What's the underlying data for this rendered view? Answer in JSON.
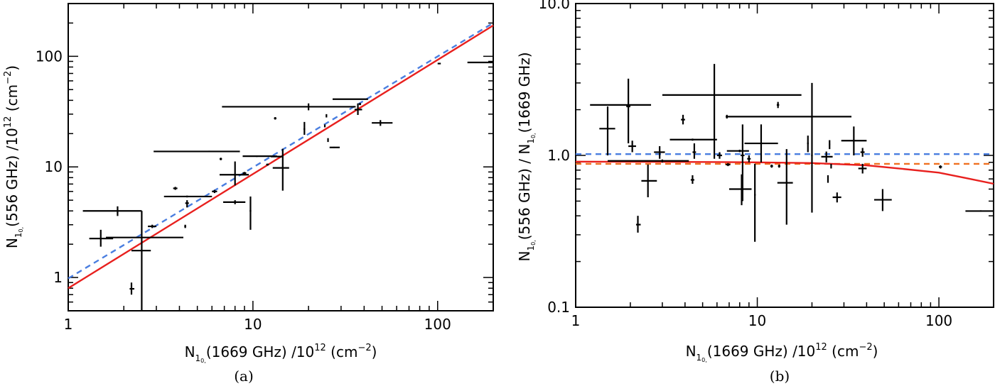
{
  "chart_data": [
    {
      "type": "scatter",
      "panel": "a",
      "caption": "(a)",
      "xscale": "log",
      "yscale": "log",
      "xlim": [
        1,
        200
      ],
      "ylim": [
        0.5,
        300
      ],
      "xticks": [
        {
          "v": 1,
          "label": "1"
        },
        {
          "v": 10,
          "label": "10"
        },
        {
          "v": 100,
          "label": "100"
        }
      ],
      "yticks": [
        {
          "v": 1,
          "label": "1"
        },
        {
          "v": 10,
          "label": "10"
        },
        {
          "v": 100,
          "label": "100"
        }
      ],
      "xlabel": {
        "pre": "N",
        "sub": "1",
        "subsub": "0,",
        "post": "(1669 GHz)  /10",
        "sup": "12",
        "post2": " (cm",
        "sup2": "−2",
        "post3": ")"
      },
      "ylabel": {
        "pre": "N",
        "sub": "1",
        "subsub": "0,",
        "post": "(556 GHz)  /10",
        "sup": "12",
        "post2": " (cm",
        "sup2": "−2",
        "post3": ")"
      },
      "lines": [
        {
          "name": "fit-red",
          "color": "#e8201e",
          "dash": "",
          "points": [
            [
              1,
              0.8
            ],
            [
              200,
              190
            ]
          ]
        },
        {
          "name": "fit-blue-dashed",
          "color": "#4a7ee0",
          "dash": "8,6",
          "points": [
            [
              1,
              0.98
            ],
            [
              200,
              200
            ]
          ]
        }
      ],
      "points": [
        {
          "x": 1.5,
          "y": 2.25,
          "xerr": [
            1.3,
            1.75
          ],
          "yerr": [
            1.9,
            2.7
          ]
        },
        {
          "x": 1.85,
          "y": 4.0,
          "xerr": [
            1.2,
            2.5
          ],
          "yerr": [
            3.6,
            4.4
          ]
        },
        {
          "x": 2.2,
          "y": 0.79,
          "xerr": [
            2.15,
            2.28
          ],
          "yerr": [
            0.7,
            0.9
          ]
        },
        {
          "x": 2.5,
          "y": 2.3,
          "xerr": [
            1.6,
            4.2
          ],
          "yerr": [
            2.25,
            2.35
          ]
        },
        {
          "x": 2.5,
          "y": 1.75,
          "xerr": [
            2.2,
            2.8
          ],
          "yerr": [
            0.5,
            4.0
          ]
        },
        {
          "x": 2.85,
          "y": 2.9,
          "xerr": [
            2.7,
            3.0
          ],
          "yerr": [
            2.8,
            3.0
          ]
        },
        {
          "x": 3.8,
          "y": 6.4,
          "xerr": [
            3.7,
            3.9
          ],
          "yerr": [
            6.2,
            6.6
          ]
        },
        {
          "x": 4.3,
          "y": 2.9,
          "xerr": [
            4.25,
            4.35
          ],
          "yerr": [
            2.8,
            3.0
          ]
        },
        {
          "x": 4.4,
          "y": 4.7,
          "xerr": [
            4.3,
            4.5
          ],
          "yerr": [
            4.3,
            5.0
          ]
        },
        {
          "x": 4.4,
          "y": 5.4,
          "xerr": [
            3.3,
            6.0
          ],
          "yerr": [
            5.3,
            5.5
          ]
        },
        {
          "x": 5.8,
          "y": 13.8,
          "xerr": [
            2.9,
            8.5
          ],
          "yerr": [
            13.6,
            14.0
          ]
        },
        {
          "x": 6.2,
          "y": 6.0,
          "xerr": [
            6.0,
            6.4
          ],
          "yerr": [
            5.8,
            6.2
          ]
        },
        {
          "x": 6.7,
          "y": 11.8,
          "xerr": [
            6.6,
            6.8
          ],
          "yerr": [
            11.5,
            12.1
          ]
        },
        {
          "x": 8.0,
          "y": 4.8,
          "xerr": [
            6.9,
            9.1
          ],
          "yerr": [
            4.6,
            5.0
          ]
        },
        {
          "x": 8.0,
          "y": 8.5,
          "xerr": [
            6.6,
            9.5
          ],
          "yerr": [
            6.8,
            11.2
          ]
        },
        {
          "x": 9.0,
          "y": 8.8,
          "xerr": [
            8.8,
            9.2
          ],
          "yerr": [
            8.6,
            9.0
          ]
        },
        {
          "x": 9.7,
          "y": 4.0,
          "xerr": [
            9.6,
            9.8
          ],
          "yerr": [
            2.7,
            5.4
          ]
        },
        {
          "x": 10.5,
          "y": 12.5,
          "xerr": [
            8.8,
            13.5
          ],
          "yerr": [
            12.3,
            12.7
          ]
        },
        {
          "x": 12.0,
          "y": 10.5,
          "xerr": [
            11.8,
            12.2
          ],
          "yerr": [
            10.3,
            10.7
          ]
        },
        {
          "x": 13.2,
          "y": 27.5,
          "xerr": [
            13.0,
            13.4
          ],
          "yerr": [
            26.8,
            28.2
          ]
        },
        {
          "x": 14.5,
          "y": 9.8,
          "xerr": [
            12.8,
            15.7
          ],
          "yerr": [
            6.1,
            14.6
          ]
        },
        {
          "x": 14.0,
          "y": 12.4,
          "xerr": [
            12.5,
            14.5
          ],
          "yerr": [
            12.2,
            12.6
          ]
        },
        {
          "x": 19.0,
          "y": 22.0,
          "xerr": [
            18.8,
            19.2
          ],
          "yerr": [
            19.5,
            25.5
          ]
        },
        {
          "x": 20.0,
          "y": 35.0,
          "xerr": [
            6.8,
            36.0
          ],
          "yerr": [
            32.5,
            37.5
          ]
        },
        {
          "x": 24.5,
          "y": 23.5,
          "xerr": [
            24.3,
            24.7
          ],
          "yerr": [
            22.8,
            24.2
          ]
        },
        {
          "x": 25.0,
          "y": 29.0,
          "xerr": [
            24.8,
            25.2
          ],
          "yerr": [
            28.0,
            30.0
          ]
        },
        {
          "x": 25.5,
          "y": 17.5,
          "xerr": [
            25.3,
            25.7
          ],
          "yerr": [
            16.8,
            18.2
          ]
        },
        {
          "x": 27.5,
          "y": 15.0,
          "xerr": [
            26.0,
            29.5
          ],
          "yerr": [
            14.8,
            15.2
          ]
        },
        {
          "x": 37.0,
          "y": 33.0,
          "xerr": [
            35.5,
            39.0
          ],
          "yerr": [
            29.5,
            37.5
          ]
        },
        {
          "x": 38.0,
          "y": 41.0,
          "xerr": [
            27.0,
            42.0
          ],
          "yerr": [
            40.6,
            41.4
          ]
        },
        {
          "x": 38.0,
          "y": 37.0,
          "xerr": [
            37.5,
            38.5
          ],
          "yerr": [
            36.2,
            37.8
          ]
        },
        {
          "x": 49.0,
          "y": 25.0,
          "xerr": [
            44.0,
            57.0
          ],
          "yerr": [
            23.5,
            26.5
          ]
        },
        {
          "x": 102.0,
          "y": 86.0,
          "xerr": [
            100.0,
            104.0
          ],
          "yerr": [
            85.7,
            86.3
          ]
        },
        {
          "x": 170.0,
          "y": 88.0,
          "xerr": [
            145.0,
            200.0
          ],
          "yerr": [
            87.7,
            88.3
          ]
        }
      ]
    },
    {
      "type": "scatter",
      "panel": "b",
      "caption": "(b)",
      "xscale": "log",
      "yscale": "log",
      "xlim": [
        1,
        200
      ],
      "ylim": [
        0.1,
        10
      ],
      "xticks": [
        {
          "v": 1,
          "label": "1"
        },
        {
          "v": 10,
          "label": "10"
        },
        {
          "v": 100,
          "label": "100"
        }
      ],
      "yticks": [
        {
          "v": 0.1,
          "label": "0.1"
        },
        {
          "v": 1,
          "label": "1.0"
        },
        {
          "v": 10,
          "label": "10.0"
        }
      ],
      "xlabel": {
        "pre": "N",
        "sub": "1",
        "subsub": "0,",
        "post": "(1669 GHz)  /10",
        "sup": "12",
        "post2": " (cm",
        "sup2": "−2",
        "post3": ")"
      },
      "ylabel": {
        "pre": "N",
        "sub": "1",
        "subsub": "0,",
        "post": "(556 GHz)  /  N",
        "sub2": "1",
        "subsub2": "0,",
        "post2": "(1669 GHz)"
      },
      "lines": [
        {
          "name": "ratio-blue-dashed",
          "color": "#4a7ee0",
          "dash": "8,6",
          "points": [
            [
              1,
              1.02
            ],
            [
              200,
              1.02
            ]
          ]
        },
        {
          "name": "ratio-orange-dashed",
          "color": "#f07020",
          "dash": "8,6",
          "points": [
            [
              1,
              0.88
            ],
            [
              200,
              0.88
            ]
          ]
        },
        {
          "name": "ratio-red-curve",
          "color": "#e8201e",
          "dash": "",
          "points": [
            [
              1,
              0.91
            ],
            [
              5,
              0.905
            ],
            [
              10,
              0.9
            ],
            [
              20,
              0.89
            ],
            [
              40,
              0.86
            ],
            [
              60,
              0.82
            ],
            [
              100,
              0.77
            ],
            [
              140,
              0.71
            ],
            [
              200,
              0.65
            ]
          ]
        }
      ],
      "points": [
        {
          "x": 1.5,
          "y": 1.5,
          "xerr": [
            1.35,
            1.65
          ],
          "yerr": [
            1.0,
            2.1
          ]
        },
        {
          "x": 1.85,
          "y": 2.15,
          "xerr": [
            1.2,
            2.6
          ],
          "yerr": [
            2.13,
            2.17
          ]
        },
        {
          "x": 1.95,
          "y": 2.1,
          "xerr": [
            1.9,
            2.0
          ],
          "yerr": [
            1.2,
            3.2
          ]
        },
        {
          "x": 2.05,
          "y": 1.15,
          "xerr": [
            1.95,
            2.15
          ],
          "yerr": [
            1.05,
            1.25
          ]
        },
        {
          "x": 2.2,
          "y": 0.35,
          "xerr": [
            2.15,
            2.28
          ],
          "yerr": [
            0.31,
            0.4
          ]
        },
        {
          "x": 2.5,
          "y": 0.68,
          "xerr": [
            2.3,
            2.8
          ],
          "yerr": [
            0.53,
            0.87
          ]
        },
        {
          "x": 2.9,
          "y": 1.05,
          "xerr": [
            2.7,
            3.1
          ],
          "yerr": [
            0.95,
            1.15
          ]
        },
        {
          "x": 3.0,
          "y": 0.92,
          "xerr": [
            1.5,
            4.2
          ],
          "yerr": [
            0.9,
            0.94
          ]
        },
        {
          "x": 3.9,
          "y": 1.72,
          "xerr": [
            3.8,
            4.0
          ],
          "yerr": [
            1.6,
            1.85
          ]
        },
        {
          "x": 4.4,
          "y": 1.27,
          "xerr": [
            3.3,
            6.0
          ],
          "yerr": [
            1.25,
            1.29
          ]
        },
        {
          "x": 4.4,
          "y": 0.69,
          "xerr": [
            4.3,
            4.5
          ],
          "yerr": [
            0.65,
            0.74
          ]
        },
        {
          "x": 4.5,
          "y": 1.05,
          "xerr": [
            4.4,
            4.6
          ],
          "yerr": [
            0.95,
            1.2
          ]
        },
        {
          "x": 5.8,
          "y": 2.5,
          "xerr": [
            3.0,
            17.5
          ],
          "yerr": [
            0.95,
            4.0
          ]
        },
        {
          "x": 6.2,
          "y": 1.0,
          "xerr": [
            6.0,
            6.4
          ],
          "yerr": [
            0.95,
            1.05
          ]
        },
        {
          "x": 6.8,
          "y": 1.8,
          "xerr": [
            6.7,
            33.0
          ],
          "yerr": [
            1.75,
            1.85
          ]
        },
        {
          "x": 6.9,
          "y": 0.87,
          "xerr": [
            6.7,
            7.1
          ],
          "yerr": [
            0.85,
            0.89
          ]
        },
        {
          "x": 8.0,
          "y": 1.07,
          "xerr": [
            6.8,
            9.0
          ],
          "yerr": [
            1.05,
            1.09
          ]
        },
        {
          "x": 8.2,
          "y": 0.6,
          "xerr": [
            7.0,
            9.3
          ],
          "yerr": [
            0.47,
            0.75
          ]
        },
        {
          "x": 8.3,
          "y": 1.0,
          "xerr": [
            8.1,
            8.5
          ],
          "yerr": [
            0.5,
            1.6
          ]
        },
        {
          "x": 9.0,
          "y": 0.95,
          "xerr": [
            8.8,
            9.2
          ],
          "yerr": [
            0.9,
            1.0
          ]
        },
        {
          "x": 9.7,
          "y": 0.55,
          "xerr": [
            9.6,
            9.8
          ],
          "yerr": [
            0.27,
            0.88
          ]
        },
        {
          "x": 10.5,
          "y": 1.2,
          "xerr": [
            8.5,
            13.0
          ],
          "yerr": [
            0.9,
            1.6
          ]
        },
        {
          "x": 12.0,
          "y": 0.85,
          "xerr": [
            11.8,
            12.2
          ],
          "yerr": [
            0.83,
            0.87
          ]
        },
        {
          "x": 13.0,
          "y": 2.15,
          "xerr": [
            12.8,
            13.2
          ],
          "yerr": [
            2.05,
            2.25
          ]
        },
        {
          "x": 13.2,
          "y": 0.85,
          "xerr": [
            13.0,
            13.4
          ],
          "yerr": [
            0.83,
            0.87
          ]
        },
        {
          "x": 14.5,
          "y": 0.66,
          "xerr": [
            12.9,
            15.7
          ],
          "yerr": [
            0.35,
            1.1
          ]
        },
        {
          "x": 19.0,
          "y": 1.2,
          "xerr": [
            18.8,
            19.2
          ],
          "yerr": [
            1.05,
            1.35
          ]
        },
        {
          "x": 20.0,
          "y": 1.0,
          "xerr": [
            19.8,
            20.2
          ],
          "yerr": [
            0.42,
            3.0
          ]
        },
        {
          "x": 24.0,
          "y": 0.98,
          "xerr": [
            22.5,
            26.0
          ],
          "yerr": [
            0.9,
            1.06
          ]
        },
        {
          "x": 24.5,
          "y": 0.7,
          "xerr": [
            24.3,
            24.7
          ],
          "yerr": [
            0.66,
            0.74
          ]
        },
        {
          "x": 25.0,
          "y": 1.18,
          "xerr": [
            24.8,
            25.2
          ],
          "yerr": [
            1.1,
            1.26
          ]
        },
        {
          "x": 25.5,
          "y": 0.85,
          "xerr": [
            25.3,
            25.7
          ],
          "yerr": [
            0.82,
            0.88
          ]
        },
        {
          "x": 27.5,
          "y": 0.53,
          "xerr": [
            26.0,
            29.0
          ],
          "yerr": [
            0.49,
            0.57
          ]
        },
        {
          "x": 34.0,
          "y": 1.25,
          "xerr": [
            29.0,
            40.0
          ],
          "yerr": [
            1.0,
            1.55
          ]
        },
        {
          "x": 38.0,
          "y": 1.05,
          "xerr": [
            37.0,
            39.0
          ],
          "yerr": [
            0.98,
            1.12
          ]
        },
        {
          "x": 38.0,
          "y": 0.82,
          "xerr": [
            36.0,
            40.0
          ],
          "yerr": [
            0.76,
            0.88
          ]
        },
        {
          "x": 49.0,
          "y": 0.51,
          "xerr": [
            44.0,
            55.0
          ],
          "yerr": [
            0.43,
            0.6
          ]
        },
        {
          "x": 102.0,
          "y": 0.84,
          "xerr": [
            100.0,
            104.0
          ],
          "yerr": [
            0.82,
            0.86
          ]
        },
        {
          "x": 170.0,
          "y": 0.43,
          "xerr": [
            140.0,
            200.0
          ],
          "yerr": [
            0.425,
            0.435
          ]
        }
      ]
    }
  ]
}
